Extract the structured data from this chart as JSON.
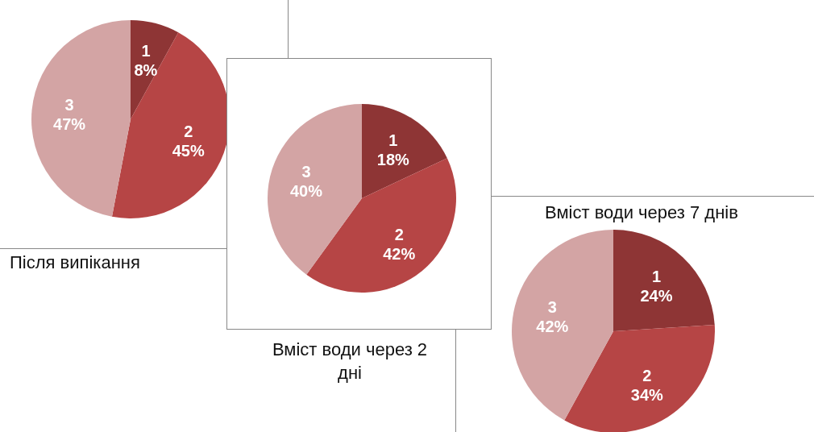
{
  "chart_data": [
    {
      "type": "pie",
      "title": "Після випікання",
      "categories": [
        "1",
        "2",
        "3"
      ],
      "values": [
        8,
        45,
        47
      ],
      "value_labels": [
        "8%",
        "45%",
        "47%"
      ],
      "colors": [
        "#8e3535",
        "#b64545",
        "#d3a4a4"
      ]
    },
    {
      "type": "pie",
      "title": "Вміст води через 2 дні",
      "categories": [
        "1",
        "2",
        "3"
      ],
      "values": [
        18,
        42,
        40
      ],
      "value_labels": [
        "18%",
        "42%",
        "40%"
      ],
      "colors": [
        "#8e3535",
        "#b64545",
        "#d3a4a4"
      ]
    },
    {
      "type": "pie",
      "title": "Вміст води через 7 днів",
      "categories": [
        "1",
        "2",
        "3"
      ],
      "values": [
        24,
        34,
        42
      ],
      "value_labels": [
        "24%",
        "34%",
        "42%"
      ],
      "colors": [
        "#8e3535",
        "#b64545",
        "#d3a4a4"
      ]
    }
  ]
}
